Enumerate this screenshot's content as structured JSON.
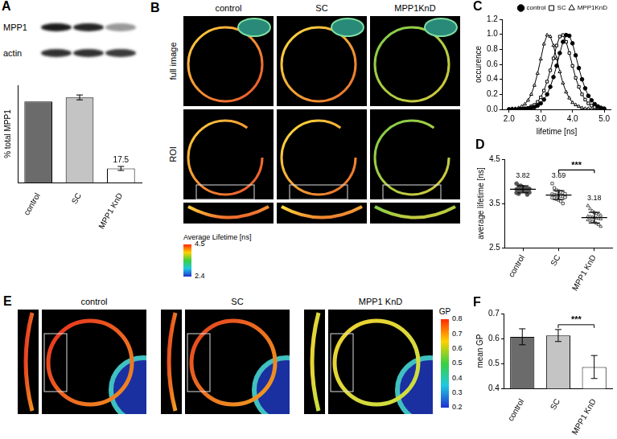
{
  "chart_data": [
    {
      "title": "A",
      "type": "bar",
      "categories": [
        "control",
        "SC",
        "MPP1 KnD"
      ],
      "values": [
        100,
        105,
        17.5
      ],
      "errors": [
        null,
        3,
        2.5
      ],
      "colors": [
        "#6b6b6b",
        "#c4c4c4",
        "#ffffff"
      ],
      "ylabel": "% total MPP1",
      "ylim": [
        0,
        120
      ],
      "tick_labels": "x",
      "data_labels": true,
      "value_labels": [
        null,
        null,
        "17.5"
      ]
    },
    {
      "title": "C",
      "type": "line",
      "x": [
        2,
        2.1,
        2.2,
        2.3,
        2.4,
        2.5,
        2.6,
        2.7,
        2.8,
        2.9,
        3,
        3.1,
        3.2,
        3.3,
        3.4,
        3.5,
        3.6,
        3.7,
        3.8,
        3.9,
        4,
        4.1,
        4.2,
        4.3,
        4.4,
        4.5,
        4.6,
        4.7,
        4.8,
        4.9,
        5
      ],
      "series": [
        {
          "name": "control",
          "color": "#000000",
          "marker": "circle",
          "values": [
            0,
            0,
            0,
            0,
            0,
            0.01,
            0.01,
            0.02,
            0.03,
            0.05,
            0.08,
            0.13,
            0.2,
            0.3,
            0.43,
            0.58,
            0.75,
            0.9,
            0.99,
            0.98,
            0.88,
            0.72,
            0.55,
            0.4,
            0.28,
            0.18,
            0.12,
            0.07,
            0.04,
            0.02,
            0.01
          ]
        },
        {
          "name": "SC",
          "color": "#000000",
          "marker": "square-open",
          "values": [
            0,
            0,
            0,
            0,
            0.01,
            0.01,
            0.02,
            0.04,
            0.06,
            0.1,
            0.16,
            0.25,
            0.37,
            0.52,
            0.68,
            0.85,
            0.97,
            0.99,
            0.9,
            0.75,
            0.58,
            0.42,
            0.3,
            0.2,
            0.13,
            0.08,
            0.05,
            0.03,
            0.02,
            0.01,
            0
          ]
        },
        {
          "name": "MPP1KnD",
          "color": "#000000",
          "marker": "triangle-open",
          "values": [
            0,
            0.01,
            0.01,
            0.02,
            0.04,
            0.07,
            0.12,
            0.2,
            0.32,
            0.48,
            0.67,
            0.87,
            0.99,
            0.97,
            0.85,
            0.68,
            0.5,
            0.35,
            0.23,
            0.15,
            0.09,
            0.06,
            0.04,
            0.02,
            0.01,
            0.01,
            0,
            0,
            0,
            0,
            0
          ]
        }
      ],
      "xlabel": "lifetime [ns]",
      "ylabel": "occurence",
      "xlim": [
        1.8,
        5.2
      ],
      "xticks": [
        {
          "value": 2,
          "label": "2.0"
        },
        {
          "value": 3,
          "label": "3.0"
        },
        {
          "value": 4,
          "label": "4.0"
        },
        {
          "value": 5,
          "label": "5.0"
        }
      ],
      "ylim": [
        0,
        1.2
      ],
      "yticks": [
        {
          "value": 0,
          "label": "0.0"
        },
        0.2,
        0.4,
        0.6,
        0.8,
        {
          "value": 1,
          "label": "1.0"
        },
        1.2
      ],
      "legend": "top-right"
    },
    {
      "title": "D",
      "type": "dot",
      "series": [
        {
          "name": "control",
          "color": "#555555",
          "marker": "circle",
          "values": [
            3.95,
            3.9,
            3.88,
            3.86,
            3.85,
            3.84,
            3.83,
            3.82,
            3.81,
            3.8,
            3.8,
            3.78,
            3.77,
            3.75,
            3.74,
            3.72,
            3.9,
            3.87,
            3.79,
            3.7
          ]
        },
        {
          "name": "SC",
          "color": "#555555",
          "marker": "square-open",
          "values": [
            3.95,
            3.85,
            3.8,
            3.78,
            3.76,
            3.74,
            3.72,
            3.71,
            3.7,
            3.69,
            3.68,
            3.67,
            3.66,
            3.65,
            3.63,
            3.62,
            3.6,
            3.58,
            3.55,
            3.5,
            3.64
          ]
        },
        {
          "name": "MPP1 KnD",
          "color": "#555555",
          "marker": "triangle-open",
          "values": [
            3.45,
            3.38,
            3.33,
            3.3,
            3.27,
            3.25,
            3.23,
            3.21,
            3.2,
            3.19,
            3.18,
            3.17,
            3.16,
            3.15,
            3.13,
            3.12,
            3.1,
            3.08,
            3.05,
            3.02,
            2.98
          ]
        }
      ],
      "means": [
        3.82,
        3.69,
        3.18
      ],
      "errors": [
        0.08,
        0.1,
        0.12
      ],
      "data_labels": true,
      "ylabel": "average lifetime [ns]",
      "ylim": [
        2.5,
        4.5
      ],
      "yticks": [
        2.5,
        3.5,
        4.5
      ],
      "annotations": [
        {
          "text": "***",
          "from": "SC",
          "to": "MPP1 KnD"
        }
      ]
    },
    {
      "title": "F",
      "type": "bar",
      "categories": [
        "control",
        "SC",
        "MPP1 KnD"
      ],
      "values": [
        0.607,
        0.612,
        0.486
      ],
      "errors": [
        0.032,
        0.024,
        0.046
      ],
      "colors": [
        "#6b6b6b",
        "#c4c4c4",
        "#ffffff"
      ],
      "ylabel": "mean GP",
      "ylim": [
        0.4,
        0.7
      ],
      "yticks": [
        0.4,
        0.5,
        0.6,
        0.7
      ],
      "annotations": [
        {
          "text": "***",
          "from": "SC",
          "to": "MPP1 KnD"
        }
      ]
    }
  ],
  "blot": {
    "labels": [
      "MPP1",
      "actin"
    ]
  },
  "images": [
    {
      "title": "B",
      "columns": [
        "control",
        "SC",
        "MPP1KnD"
      ],
      "rows": [
        "full image",
        "ROI"
      ],
      "colorbar": {
        "title": "Average Lifetime [ns]",
        "range": [
          2.4,
          4.5
        ],
        "ticks": [
          4.5,
          2.4
        ]
      }
    },
    {
      "title": "E",
      "columns": [
        "control",
        "SC",
        "MPP1 KnD"
      ],
      "colorbar": {
        "title": "GP",
        "range": [
          0.2,
          0.8
        ],
        "ticks": [
          0.2,
          0.3,
          0.4,
          0.5,
          0.6,
          0.7,
          0.8
        ]
      }
    }
  ]
}
